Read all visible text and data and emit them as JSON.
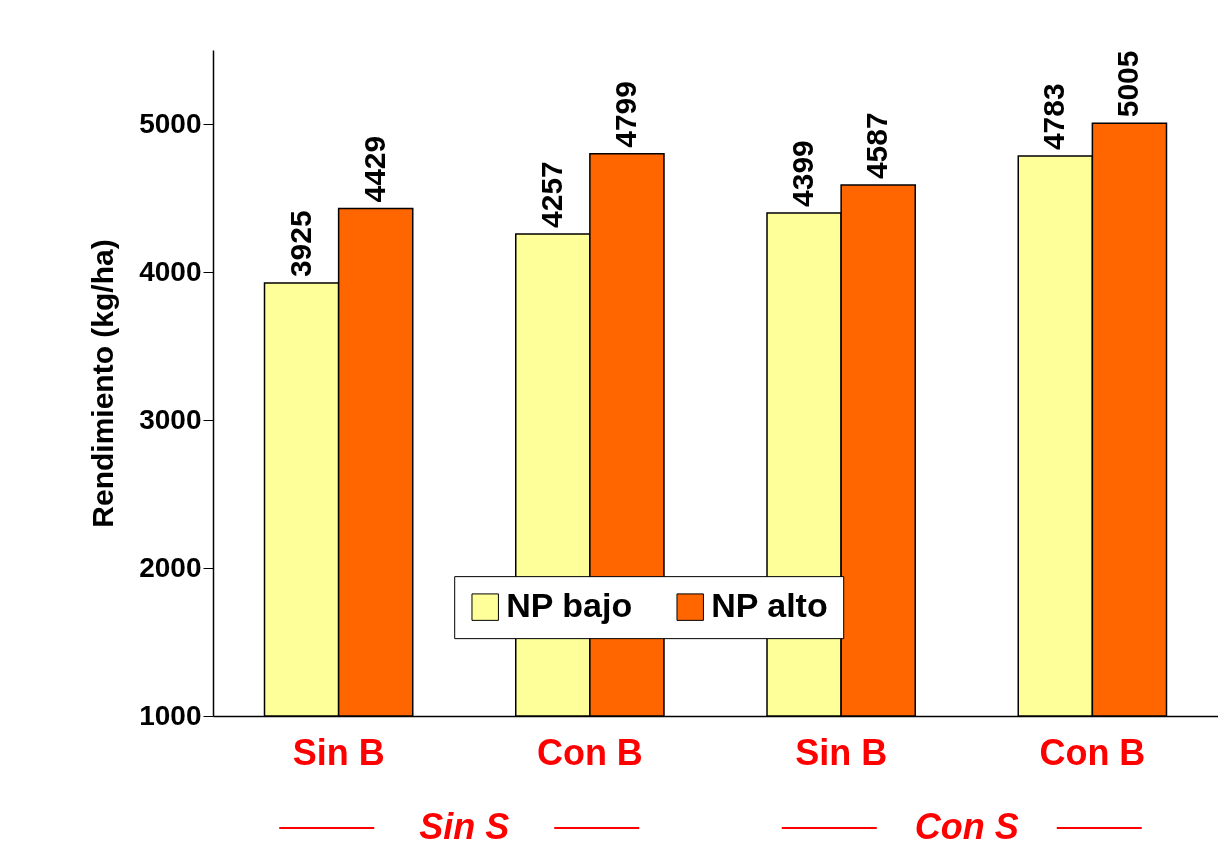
{
  "chart_data": {
    "type": "bar",
    "ylabel": "Rendimiento (kg/ha)",
    "categories": [
      "Sin B",
      "Con B",
      "Sin B",
      "Con B"
    ],
    "series": [
      {
        "name": "NP bajo",
        "color": "#ffff99",
        "values": [
          3925,
          4257,
          4399,
          4783
        ]
      },
      {
        "name": "NP alto",
        "color": "#ff6600",
        "values": [
          4429,
          4799,
          4587,
          5005
        ]
      }
    ],
    "ylim": [
      1000,
      5500
    ],
    "yticks": [
      1000,
      2000,
      3000,
      4000,
      5000
    ],
    "data_labels": true,
    "legend": "bottom",
    "grid": false,
    "annotations": [
      "Sin S",
      "Con S"
    ]
  }
}
